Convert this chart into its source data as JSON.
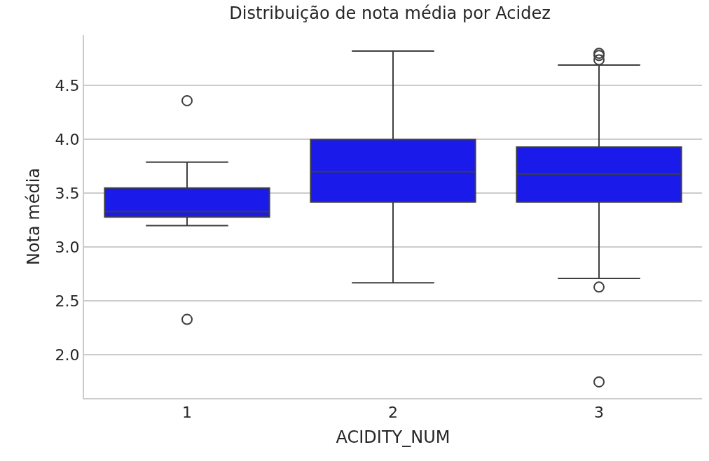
{
  "chart_data": {
    "type": "box",
    "title": "Distribuição de nota média por Acidez",
    "xlabel": "ACIDITY_NUM",
    "ylabel": "Nota média",
    "categories": [
      "1",
      "2",
      "3"
    ],
    "color": "#1a1aeb",
    "boxes": [
      {
        "low": 3.2,
        "q1": 3.28,
        "median": 3.33,
        "q3": 3.55,
        "high": 3.79,
        "outliers": [
          4.36,
          2.33
        ]
      },
      {
        "low": 2.67,
        "q1": 3.42,
        "median": 3.7,
        "q3": 4.0,
        "high": 4.82
      },
      {
        "low": 2.71,
        "q1": 3.42,
        "median": 3.68,
        "q3": 3.93,
        "high": 4.69,
        "outliers": [
          4.8,
          4.78,
          4.74,
          2.63,
          1.75
        ]
      }
    ],
    "ylim": [
      1.6,
      4.97
    ],
    "yticks": [
      {
        "value": 2,
        "label": "2.0"
      },
      2.5,
      {
        "value": 3,
        "label": "3.0"
      },
      3.5,
      {
        "value": 4,
        "label": "4.0"
      },
      4.5
    ],
    "grid": "y"
  }
}
